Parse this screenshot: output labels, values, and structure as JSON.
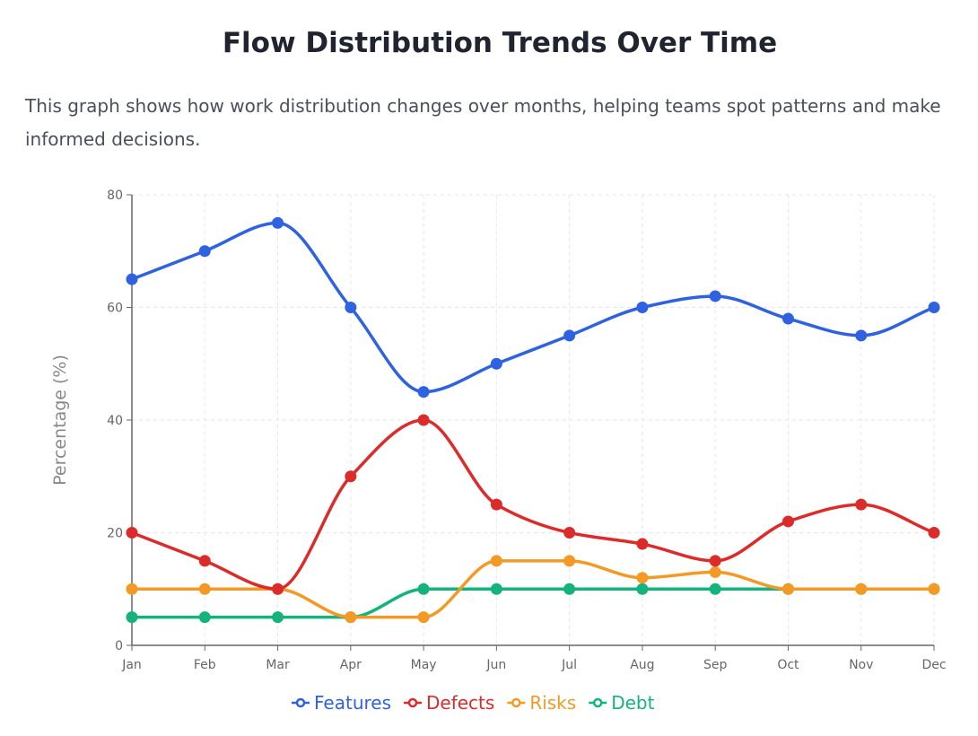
{
  "title": "Flow Distribution Trends Over Time",
  "description": "This graph shows how work distribution changes over months, helping teams spot patterns and make informed decisions.",
  "chart_data": {
    "type": "line",
    "categories": [
      "Jan",
      "Feb",
      "Mar",
      "Apr",
      "May",
      "Jun",
      "Jul",
      "Aug",
      "Sep",
      "Oct",
      "Nov",
      "Dec"
    ],
    "ylabel": "Percentage (%)",
    "xlabel": "",
    "ylim": [
      0,
      80
    ],
    "yticks": [
      0,
      20,
      40,
      60,
      80
    ],
    "grid": true,
    "legend": "bottom",
    "series": [
      {
        "name": "Features",
        "color": "#2f62e0",
        "values": [
          65,
          70,
          75,
          60,
          45,
          50,
          55,
          60,
          62,
          58,
          55,
          60
        ]
      },
      {
        "name": "Defects",
        "color": "#dc2b2b",
        "values": [
          20,
          15,
          10,
          30,
          40,
          25,
          20,
          18,
          15,
          22,
          25,
          20
        ]
      },
      {
        "name": "Risks",
        "color": "#f39a26",
        "values": [
          10,
          10,
          10,
          5,
          5,
          15,
          15,
          12,
          13,
          10,
          10,
          10
        ]
      },
      {
        "name": "Debt",
        "color": "#14b37d",
        "values": [
          5,
          5,
          5,
          5,
          10,
          10,
          10,
          10,
          10,
          10,
          10,
          10
        ]
      }
    ]
  }
}
